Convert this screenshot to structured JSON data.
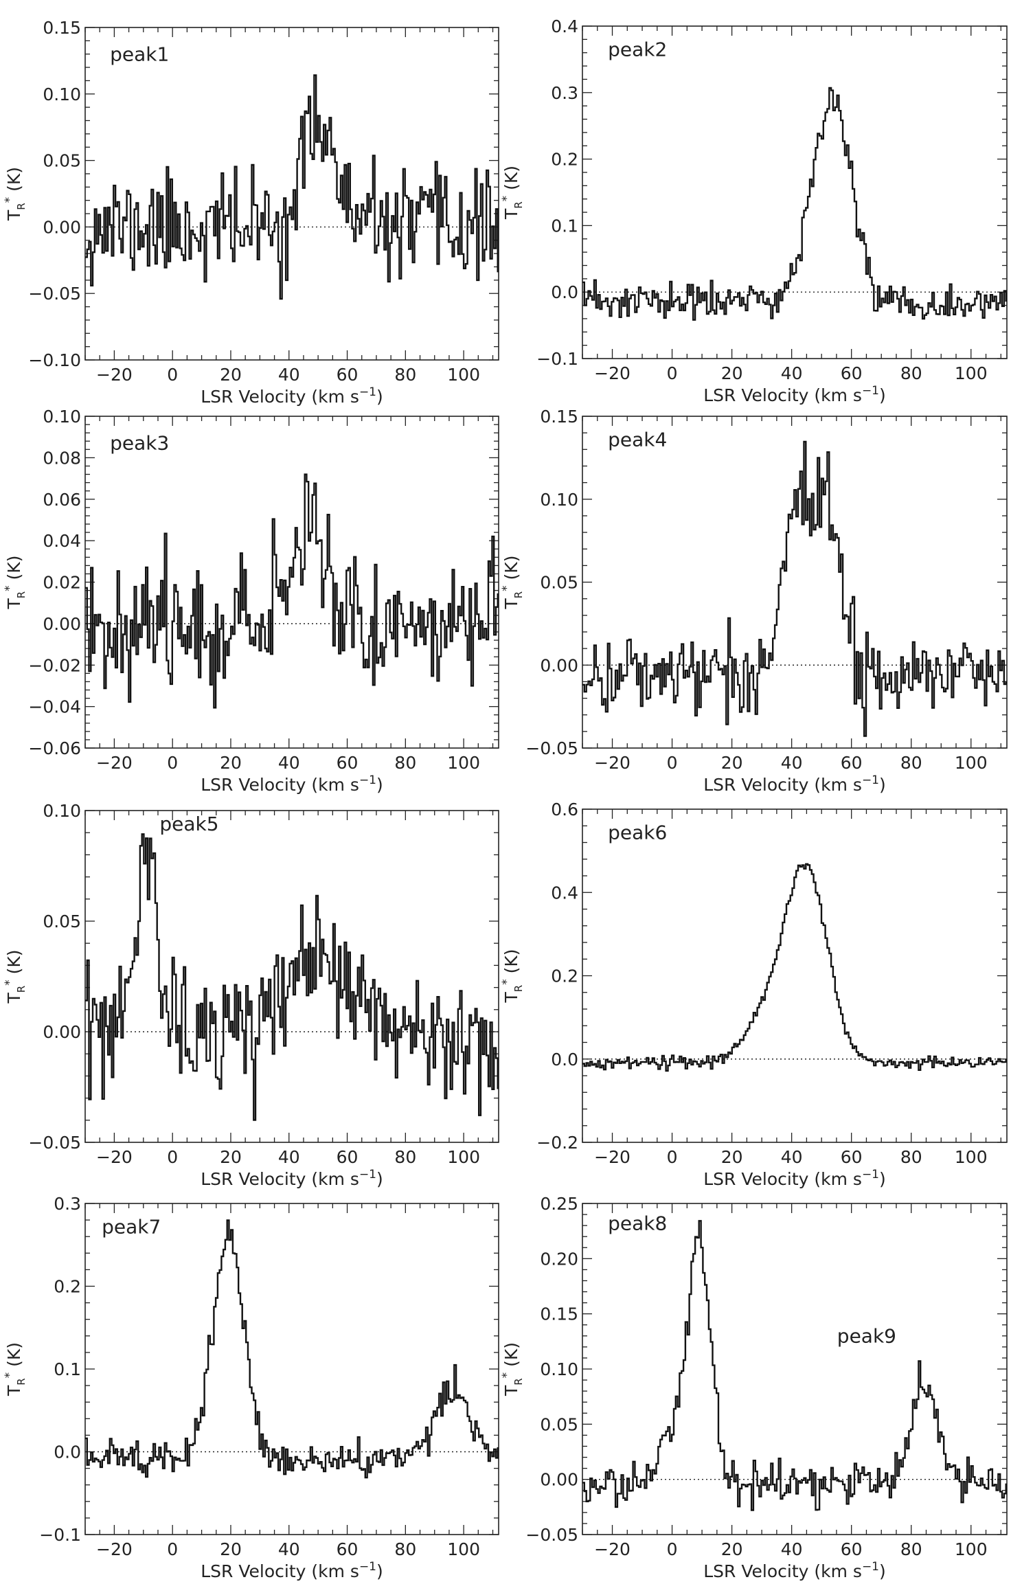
{
  "figure": {
    "x_label": "LSR Velocity (km s⁻¹)",
    "y_label": "Tᵣ* (K)",
    "y_label_parts": {
      "main": "T",
      "sub": "R",
      "sup": "*",
      "unit": " (K)"
    },
    "x_label_parts": {
      "main": "LSR Velocity (km s",
      "sup": "−1",
      "end": ")"
    }
  },
  "chart_data": [
    {
      "type": "line",
      "title": "",
      "labels": [
        "peak1"
      ],
      "xlabel": "LSR Velocity (km s⁻¹)",
      "ylabel": "Tᵣ* (K)",
      "xlim": [
        -30,
        112
      ],
      "ylim": [
        -0.1,
        0.15
      ],
      "xticks": [
        -20,
        0,
        20,
        40,
        60,
        80,
        100
      ],
      "yticks": [
        -0.1,
        -0.05,
        0.0,
        0.05,
        0.1,
        0.15
      ],
      "ytick_labels": [
        "−0.10",
        "−0.05",
        "0.00",
        "0.05",
        "0.10",
        "0.15"
      ],
      "noise": 0.02,
      "baseline": 0.0,
      "seed": 11,
      "components": [
        {
          "center": 50,
          "amplitude": 0.085,
          "sigma": 5
        }
      ],
      "series": [
        {
          "name": "",
          "x": [
            -20,
            0,
            20,
            40,
            45,
            50,
            55,
            60,
            80,
            100
          ],
          "values": [
            0.0,
            0.0,
            0.0,
            0.03,
            0.07,
            0.1,
            0.07,
            0.03,
            0.0,
            0.0
          ]
        }
      ]
    },
    {
      "type": "line",
      "title": "",
      "labels": [
        "peak2"
      ],
      "xlabel": "LSR Velocity (km s⁻¹)",
      "ylabel": "Tᵣ* (K)",
      "xlim": [
        -30,
        112
      ],
      "ylim": [
        -0.1,
        0.4
      ],
      "xticks": [
        -20,
        0,
        20,
        40,
        60,
        80,
        100
      ],
      "yticks": [
        -0.1,
        0.0,
        0.1,
        0.2,
        0.3,
        0.4
      ],
      "ytick_labels": [
        "−0.1",
        "0.0",
        "0.1",
        "0.2",
        "0.3",
        "0.4"
      ],
      "noise": 0.015,
      "baseline": -0.015,
      "seed": 23,
      "components": [
        {
          "center": 53,
          "amplitude": 0.31,
          "sigma": 6.5
        }
      ],
      "series": [
        {
          "name": "",
          "x": [
            -20,
            0,
            20,
            35,
            45,
            55,
            60,
            65,
            80,
            100
          ],
          "values": [
            -0.02,
            -0.01,
            -0.01,
            0.02,
            0.17,
            0.32,
            0.22,
            0.03,
            -0.03,
            -0.02
          ]
        }
      ]
    },
    {
      "type": "line",
      "title": "",
      "labels": [
        "peak3"
      ],
      "xlabel": "LSR Velocity (km s⁻¹)",
      "ylabel": "Tᵣ* (K)",
      "xlim": [
        -30,
        112
      ],
      "ylim": [
        -0.06,
        0.1
      ],
      "xticks": [
        -20,
        0,
        20,
        40,
        60,
        80,
        100
      ],
      "yticks": [
        -0.06,
        -0.04,
        -0.02,
        0.0,
        0.02,
        0.04,
        0.06,
        0.08,
        0.1
      ],
      "ytick_labels": [
        "−0.06",
        "−0.04",
        "−0.02",
        "0.00",
        "0.02",
        "0.04",
        "0.06",
        "0.08",
        "0.10"
      ],
      "noise": 0.015,
      "baseline": 0.0,
      "seed": 37,
      "components": [
        {
          "center": 47,
          "amplitude": 0.055,
          "sigma": 5.5
        }
      ],
      "series": [
        {
          "name": "",
          "x": [
            -20,
            0,
            20,
            40,
            45,
            48,
            55,
            60,
            80,
            100
          ],
          "values": [
            0.0,
            0.0,
            -0.01,
            0.03,
            0.06,
            0.08,
            0.04,
            0.0,
            -0.01,
            0.0
          ]
        }
      ]
    },
    {
      "type": "line",
      "title": "",
      "labels": [
        "peak4"
      ],
      "xlabel": "LSR Velocity (km s⁻¹)",
      "ylabel": "Tᵣ* (K)",
      "xlim": [
        -30,
        112
      ],
      "ylim": [
        -0.05,
        0.15
      ],
      "xticks": [
        -20,
        0,
        20,
        40,
        60,
        80,
        100
      ],
      "yticks": [
        -0.05,
        0.0,
        0.05,
        0.1,
        0.15
      ],
      "ytick_labels": [
        "−0.05",
        "0.00",
        "0.05",
        "0.10",
        "0.15"
      ],
      "noise": 0.012,
      "baseline": -0.005,
      "seed": 41,
      "components": [
        {
          "center": 41,
          "amplitude": 0.1,
          "sigma": 4.5
        },
        {
          "center": 52,
          "amplitude": 0.1,
          "sigma": 4.5
        }
      ],
      "series": [
        {
          "name": "",
          "x": [
            -20,
            0,
            20,
            35,
            41,
            47,
            52,
            58,
            80,
            100
          ],
          "values": [
            0.0,
            -0.01,
            0.0,
            0.03,
            0.12,
            0.09,
            0.13,
            0.05,
            -0.01,
            0.0
          ]
        }
      ]
    },
    {
      "type": "line",
      "title": "",
      "labels": [
        "peak5"
      ],
      "xlabel": "LSR Velocity (km s⁻¹)",
      "ylabel": "Tᵣ* (K)",
      "xlim": [
        -30,
        112
      ],
      "ylim": [
        -0.05,
        0.1
      ],
      "xticks": [
        -20,
        0,
        20,
        40,
        60,
        80,
        100
      ],
      "yticks": [
        -0.05,
        0.0,
        0.05,
        0.1
      ],
      "ytick_labels": [
        "−0.05",
        "0.00",
        "0.05",
        "0.10"
      ],
      "noise": 0.014,
      "baseline": 0.0,
      "seed": 53,
      "components": [
        {
          "center": -9,
          "amplitude": 0.085,
          "sigma": 3.2
        },
        {
          "center": 47,
          "amplitude": 0.04,
          "sigma": 6
        },
        {
          "center": 62,
          "amplitude": 0.015,
          "sigma": 6
        }
      ],
      "series": [
        {
          "name": "",
          "x": [
            -20,
            -12,
            -8,
            -4,
            0,
            20,
            40,
            46,
            60,
            80,
            100
          ],
          "values": [
            0.0,
            0.06,
            0.095,
            0.03,
            -0.01,
            -0.01,
            0.03,
            0.055,
            0.02,
            -0.01,
            0.0
          ]
        }
      ]
    },
    {
      "type": "line",
      "title": "",
      "labels": [
        "peak6"
      ],
      "xlabel": "LSR Velocity (km s⁻¹)",
      "ylabel": "Tᵣ* (K)",
      "xlim": [
        -30,
        112
      ],
      "ylim": [
        -0.2,
        0.6
      ],
      "xticks": [
        -20,
        0,
        20,
        40,
        60,
        80,
        100
      ],
      "yticks": [
        -0.2,
        0.0,
        0.2,
        0.4,
        0.6
      ],
      "ytick_labels": [
        "−0.2",
        "0.0",
        "0.2",
        "0.4",
        "0.6"
      ],
      "noise": 0.007,
      "baseline": -0.01,
      "seed": 67,
      "components": [
        {
          "center": 45,
          "amplitude": 0.44,
          "sigma": 7
        },
        {
          "center": 33,
          "amplitude": 0.12,
          "sigma": 8
        }
      ],
      "series": [
        {
          "name": "",
          "x": [
            -20,
            0,
            20,
            30,
            40,
            45,
            50,
            60,
            80,
            100
          ],
          "values": [
            -0.01,
            -0.01,
            0.01,
            0.12,
            0.42,
            0.55,
            0.45,
            0.08,
            -0.02,
            -0.01
          ]
        }
      ]
    },
    {
      "type": "line",
      "title": "",
      "labels": [
        "peak7"
      ],
      "xlabel": "LSR Velocity (km s⁻¹)",
      "ylabel": "Tᵣ* (K)",
      "xlim": [
        -30,
        112
      ],
      "ylim": [
        -0.1,
        0.3
      ],
      "xticks": [
        -20,
        0,
        20,
        40,
        60,
        80,
        100
      ],
      "yticks": [
        -0.1,
        0.0,
        0.1,
        0.2,
        0.3
      ],
      "ytick_labels": [
        "−0.1",
        "0.0",
        "0.1",
        "0.2",
        "0.3"
      ],
      "noise": 0.01,
      "baseline": -0.01,
      "seed": 79,
      "components": [
        {
          "center": 19,
          "amplitude": 0.265,
          "sigma": 5.5
        },
        {
          "center": 96,
          "amplitude": 0.085,
          "sigma": 6
        }
      ],
      "series": [
        {
          "name": "",
          "x": [
            -20,
            0,
            10,
            19,
            25,
            30,
            60,
            90,
            96,
            105
          ],
          "values": [
            -0.01,
            0.0,
            0.1,
            0.26,
            0.2,
            0.03,
            -0.01,
            0.06,
            0.08,
            0.01
          ]
        }
      ]
    },
    {
      "type": "line",
      "title": "",
      "labels": [
        "peak8",
        "peak9"
      ],
      "xlabel": "LSR Velocity (km s⁻¹)",
      "ylabel": "Tᵣ* (K)",
      "xlim": [
        -30,
        112
      ],
      "ylim": [
        -0.05,
        0.25
      ],
      "xticks": [
        -20,
        0,
        20,
        40,
        60,
        80,
        100
      ],
      "yticks": [
        -0.05,
        0.0,
        0.05,
        0.1,
        0.15,
        0.2,
        0.25
      ],
      "ytick_labels": [
        "−0.05",
        "0.00",
        "0.05",
        "0.10",
        "0.15",
        "0.20",
        "0.25"
      ],
      "noise": 0.01,
      "baseline": -0.005,
      "seed": 97,
      "components": [
        {
          "center": 9,
          "amplitude": 0.22,
          "sigma": 3.8
        },
        {
          "center": 0,
          "amplitude": 0.045,
          "sigma": 4
        },
        {
          "center": 84,
          "amplitude": 0.09,
          "sigma": 4.5
        }
      ],
      "series": [
        {
          "name": "",
          "x": [
            -20,
            -5,
            5,
            9,
            14,
            20,
            60,
            80,
            84,
            90,
            100
          ],
          "values": [
            0.0,
            0.03,
            0.18,
            0.25,
            0.1,
            0.0,
            -0.01,
            0.07,
            0.1,
            0.04,
            -0.01
          ]
        }
      ]
    }
  ]
}
